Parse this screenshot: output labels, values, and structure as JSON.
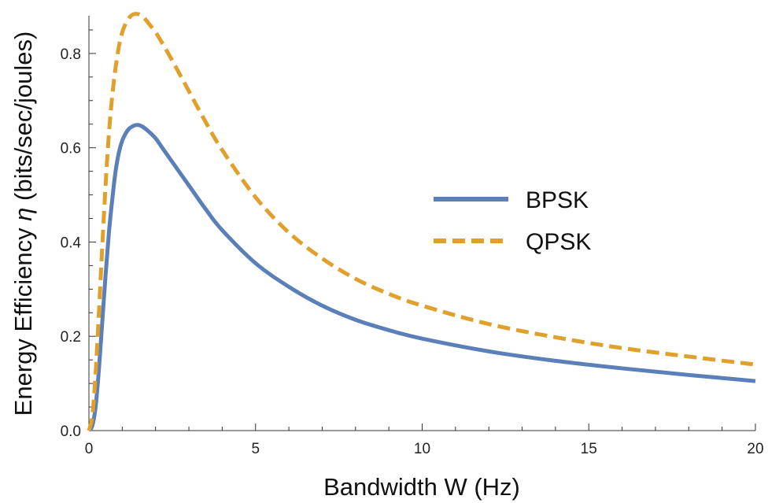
{
  "chart_data": {
    "type": "line",
    "title": "",
    "xlabel": "Bandwidth W (Hz)",
    "ylabel_prefix": "Energy Efficiency ",
    "ylabel_symbol": "η",
    "ylabel_suffix": " (bits/sec/joules)",
    "xlim": [
      0,
      20
    ],
    "ylim": [
      0,
      0.88
    ],
    "x_ticks": [
      0,
      5,
      10,
      15,
      20
    ],
    "x_tick_labels": [
      "0",
      "5",
      "10",
      "15",
      "20"
    ],
    "y_ticks": [
      0,
      0.2,
      0.4,
      0.6,
      0.8
    ],
    "y_tick_labels": [
      "0.0",
      "0.2",
      "0.4",
      "0.6",
      "0.8"
    ],
    "grid": false,
    "legend_position": "right",
    "series": [
      {
        "name": "BPSK",
        "color": "#5B7FB8",
        "style": "solid",
        "x": [
          0,
          0.1,
          0.2,
          0.3,
          0.4,
          0.5,
          0.6,
          0.7,
          0.8,
          0.9,
          1.0,
          1.1,
          1.2,
          1.3,
          1.4,
          1.5,
          1.6,
          1.7,
          1.8,
          2.0,
          2.2,
          2.5,
          3,
          3.5,
          4,
          5,
          6,
          7,
          8,
          9,
          10,
          12,
          14,
          16,
          18,
          20
        ],
        "y": [
          0,
          0.01,
          0.05,
          0.13,
          0.23,
          0.33,
          0.42,
          0.49,
          0.55,
          0.59,
          0.615,
          0.63,
          0.64,
          0.645,
          0.648,
          0.648,
          0.645,
          0.64,
          0.634,
          0.62,
          0.6,
          0.57,
          0.52,
          0.47,
          0.425,
          0.355,
          0.305,
          0.265,
          0.235,
          0.213,
          0.195,
          0.168,
          0.148,
          0.132,
          0.118,
          0.105
        ]
      },
      {
        "name": "QPSK",
        "color": "#E0A02C",
        "style": "dashed",
        "x": [
          0,
          0.1,
          0.2,
          0.3,
          0.4,
          0.5,
          0.6,
          0.7,
          0.8,
          0.9,
          1.0,
          1.1,
          1.2,
          1.3,
          1.4,
          1.5,
          1.6,
          1.7,
          1.8,
          2.0,
          2.2,
          2.5,
          3,
          3.5,
          4,
          5,
          6,
          7,
          8,
          9,
          10,
          12,
          14,
          16,
          18,
          20
        ],
        "y": [
          0,
          0.03,
          0.12,
          0.25,
          0.39,
          0.52,
          0.63,
          0.71,
          0.77,
          0.815,
          0.845,
          0.863,
          0.875,
          0.882,
          0.884,
          0.883,
          0.879,
          0.872,
          0.863,
          0.845,
          0.822,
          0.785,
          0.72,
          0.655,
          0.595,
          0.495,
          0.42,
          0.365,
          0.322,
          0.29,
          0.265,
          0.226,
          0.198,
          0.175,
          0.157,
          0.14
        ]
      }
    ]
  }
}
